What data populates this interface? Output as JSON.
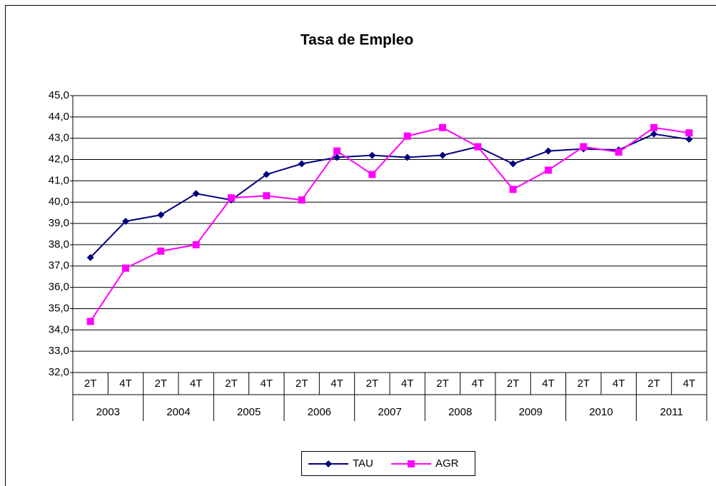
{
  "chart_data": {
    "type": "line",
    "title": "Tasa de Empleo",
    "categories": [
      "2T",
      "4T",
      "2T",
      "4T",
      "2T",
      "4T",
      "2T",
      "4T",
      "2T",
      "4T",
      "2T",
      "4T",
      "2T",
      "4T",
      "2T",
      "4T",
      "2T",
      "4T"
    ],
    "groups": [
      "2003",
      "2004",
      "2005",
      "2006",
      "2007",
      "2008",
      "2009",
      "2010",
      "2011"
    ],
    "series": [
      {
        "name": "TAU",
        "color": "#000080",
        "marker": "diamond",
        "values": [
          37.4,
          39.1,
          39.4,
          40.4,
          40.1,
          41.3,
          41.8,
          42.1,
          42.2,
          42.1,
          42.2,
          42.6,
          41.8,
          42.4,
          42.5,
          42.45,
          43.2,
          42.95
        ]
      },
      {
        "name": "AGR",
        "color": "#ff00ff",
        "marker": "square",
        "values": [
          34.4,
          36.9,
          37.7,
          38.0,
          40.2,
          40.3,
          40.1,
          42.4,
          41.3,
          43.1,
          43.5,
          42.6,
          40.6,
          41.5,
          42.6,
          42.35,
          43.5,
          43.25
        ]
      }
    ],
    "ylim": [
      32,
      45
    ],
    "yticks": [
      {
        "value": 32,
        "label": "32,0"
      },
      {
        "value": 33,
        "label": "33,0"
      },
      {
        "value": 34,
        "label": "34,0"
      },
      {
        "value": 35,
        "label": "35,0"
      },
      {
        "value": 36,
        "label": "36,0"
      },
      {
        "value": 37,
        "label": "37,0"
      },
      {
        "value": 38,
        "label": "38,0"
      },
      {
        "value": 39,
        "label": "39,0"
      },
      {
        "value": 40,
        "label": "40,0"
      },
      {
        "value": 41,
        "label": "41,0"
      },
      {
        "value": 42,
        "label": "42,0"
      },
      {
        "value": 43,
        "label": "43,0"
      },
      {
        "value": 44,
        "label": "44,0"
      },
      {
        "value": 45,
        "label": "45,0"
      }
    ],
    "grid": true,
    "legend": "bottom"
  }
}
